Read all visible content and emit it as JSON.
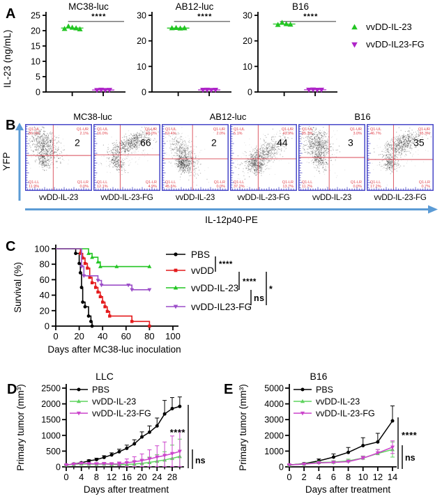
{
  "labels": {
    "A": "A",
    "B": "B",
    "C": "C",
    "D": "D",
    "E": "E"
  },
  "colors": {
    "green": "#22C522",
    "green_light": "#5FD35F",
    "magenta_marker": "#AE24C8",
    "purple_line": "#9B4DC8",
    "magenta_line": "#CC44CC",
    "red": "#E41A1C",
    "black": "#000000",
    "flow_border": "#4646C8",
    "flow_cross": "#D84854",
    "flow_label": "#E0404A",
    "arrow_blue": "#5B9BD5",
    "sig_line": "#4D4D4D"
  },
  "chart_data": [
    {
      "panel": "A",
      "type": "scatter",
      "ylabel": "IL-23 (ng/mL)",
      "legend": [
        {
          "label": "vvDD-IL-23",
          "marker": "triangle-up",
          "color": "#22C522"
        },
        {
          "label": "vvDD-IL23-FG",
          "marker": "triangle-down",
          "color": "#AE24C8"
        }
      ],
      "plots": [
        {
          "title": "MC38-luc",
          "ylim": [
            0,
            25
          ],
          "yticks": [
            0,
            5,
            10,
            15,
            20,
            25
          ],
          "sig": "****",
          "series": [
            {
              "name": "vvDD-IL-23",
              "values": [
                20.6,
                21.4,
                21.0,
                20.8,
                20.5
              ]
            },
            {
              "name": "vvDD-IL23-FG",
              "values": [
                0.6,
                0.7,
                0.6,
                0.65
              ]
            }
          ]
        },
        {
          "title": "AB12-luc",
          "ylim": [
            0,
            30
          ],
          "yticks": [
            0,
            10,
            20,
            30
          ],
          "sig": "****",
          "series": [
            {
              "name": "vvDD-IL-23",
              "values": [
                25.0,
                25.1,
                24.9,
                25.0
              ]
            },
            {
              "name": "vvDD-IL23-FG",
              "values": [
                0.8,
                0.85,
                0.75,
                0.8
              ]
            }
          ]
        },
        {
          "title": "B16",
          "ylim": [
            0,
            30
          ],
          "yticks": [
            0,
            10,
            20,
            30
          ],
          "sig": "****",
          "series": [
            {
              "name": "vvDD-IL-23",
              "values": [
                26.3,
                27.1,
                26.6,
                26.4
              ]
            },
            {
              "name": "vvDD-IL23-FG",
              "values": [
                0.85,
                0.9,
                0.8,
                0.85
              ]
            }
          ]
        }
      ]
    },
    {
      "panel": "B",
      "type": "flow-cytometry",
      "ylabel": "YFP",
      "xlabel": "IL-12p40-PE",
      "groups": [
        "MC38-luc",
        "AB12-luc",
        "B16"
      ],
      "plots": [
        {
          "group": "MC38-luc",
          "treatment": "vvDD-IL-23",
          "value": "2",
          "quadrants": [
            {
              "id": "Q1-UL",
              "pct": "86.0%"
            },
            {
              "id": "Q1-UR",
              "pct": "2.1%"
            },
            {
              "id": "Q1-LL",
              "pct": "11.9%"
            },
            {
              "id": "Q1-LR",
              "pct": "0.0%"
            }
          ],
          "cross": [
            0.42,
            0.47
          ],
          "clusters": [
            [
              0.29,
              0.3,
              0.09,
              0.145,
              -35,
              500,
              0.3
            ],
            [
              0.27,
              0.54,
              0.045,
              0.075,
              -25,
              170,
              0.28
            ],
            [
              0.31,
              0.36,
              0.16,
              0.19,
              -30,
              130,
              0.1
            ]
          ]
        },
        {
          "group": "MC38-luc",
          "treatment": "vvDD-IL-23-FG",
          "value": "66",
          "quadrants": [
            {
              "id": "Q1-UL",
              "pct": "16.0%"
            },
            {
              "id": "Q1-UR",
              "pct": "66.0%"
            },
            {
              "id": "Q1-LL",
              "pct": "12.1%"
            },
            {
              "id": "Q1-LR",
              "pct": "4.9%"
            }
          ],
          "cross": [
            0.4,
            0.46
          ],
          "clusters": [
            [
              0.55,
              0.29,
              0.17,
              0.062,
              -27,
              520,
              0.3
            ],
            [
              0.37,
              0.58,
              0.05,
              0.07,
              -30,
              180,
              0.28
            ],
            [
              0.46,
              0.44,
              0.21,
              0.12,
              -28,
              130,
              0.1
            ]
          ]
        },
        {
          "group": "AB12-luc",
          "treatment": "vvDD-IL-23",
          "value": "2",
          "quadrants": [
            {
              "id": "Q1-UL",
              "pct": "52.4%"
            },
            {
              "id": "Q1-UR",
              "pct": "2.0%"
            },
            {
              "id": "Q1-LL",
              "pct": "45.6%"
            },
            {
              "id": "Q1-LR",
              "pct": "0.0%"
            }
          ],
          "cross": [
            0.46,
            0.52
          ],
          "clusters": [
            [
              0.33,
              0.46,
              0.075,
              0.16,
              -30,
              460,
              0.26
            ],
            [
              0.31,
              0.6,
              0.05,
              0.06,
              -32,
              230,
              0.3
            ],
            [
              0.31,
              0.42,
              0.14,
              0.2,
              -26,
              140,
              0.09
            ]
          ]
        },
        {
          "group": "AB12-luc",
          "treatment": "vvDD-IL-23-FG",
          "value": "44",
          "quadrants": [
            {
              "id": "Q1-UL",
              "pct": "5.1%"
            },
            {
              "id": "Q1-UR",
              "pct": "43.9%"
            },
            {
              "id": "Q1-LL",
              "pct": "37.2%"
            },
            {
              "id": "Q1-LR",
              "pct": "13.7%"
            }
          ],
          "cross": [
            0.42,
            0.52
          ],
          "clusters": [
            [
              0.5,
              0.44,
              0.19,
              0.07,
              -35,
              520,
              0.28
            ],
            [
              0.38,
              0.62,
              0.06,
              0.062,
              -35,
              210,
              0.3
            ],
            [
              0.5,
              0.45,
              0.24,
              0.12,
              -35,
              150,
              0.09
            ]
          ]
        },
        {
          "group": "B16",
          "treatment": "vvDD-IL-23",
          "value": "3",
          "quadrants": [
            {
              "id": "Q1-UL",
              "pct": "85.3%"
            },
            {
              "id": "Q1-UR",
              "pct": "3.0%"
            },
            {
              "id": "Q1-LL",
              "pct": "11.7%"
            },
            {
              "id": "Q1-LR",
              "pct": "0.0%"
            }
          ],
          "cross": [
            0.46,
            0.5
          ],
          "clusters": [
            [
              0.3,
              0.31,
              0.095,
              0.135,
              -28,
              500,
              0.3
            ],
            [
              0.31,
              0.53,
              0.05,
              0.08,
              -25,
              180,
              0.26
            ],
            [
              0.33,
              0.36,
              0.15,
              0.18,
              -25,
              130,
              0.1
            ]
          ]
        },
        {
          "group": "B16",
          "treatment": "vvDD-IL-23-FG",
          "value": "35",
          "quadrants": [
            {
              "id": "Q1-UL",
              "pct": "46.7%"
            },
            {
              "id": "Q1-UR",
              "pct": "35.3%"
            },
            {
              "id": "Q1-LL",
              "pct": "17.2%"
            },
            {
              "id": "Q1-LR",
              "pct": "0.7%"
            }
          ],
          "cross": [
            0.4,
            0.53
          ],
          "clusters": [
            [
              0.53,
              0.3,
              0.155,
              0.07,
              -25,
              490,
              0.3
            ],
            [
              0.37,
              0.59,
              0.06,
              0.062,
              -25,
              200,
              0.28
            ],
            [
              0.47,
              0.42,
              0.2,
              0.12,
              -25,
              140,
              0.1
            ]
          ]
        }
      ]
    },
    {
      "panel": "C",
      "type": "line",
      "subtype": "kaplan-meier",
      "xlabel": "Days after MC38-luc inoculation",
      "ylabel": "Survival (%)",
      "xlim": [
        0,
        100
      ],
      "xticks": [
        0,
        20,
        40,
        60,
        80,
        100
      ],
      "ylim": [
        0,
        100
      ],
      "yticks": [
        0,
        20,
        40,
        60,
        80,
        100
      ],
      "series": [
        {
          "name": "PBS",
          "color": "#000000",
          "marker": "circle",
          "x": [
            0,
            17,
            20,
            21,
            22,
            23,
            25,
            28,
            30,
            31
          ],
          "y": [
            100,
            94,
            81,
            69,
            50,
            31,
            25,
            13,
            6,
            0
          ]
        },
        {
          "name": "vvDD",
          "color": "#E41A1C",
          "marker": "square",
          "x": [
            0,
            21,
            23,
            25,
            27,
            29,
            31,
            34,
            36,
            38,
            40,
            42,
            44,
            46,
            65,
            80
          ],
          "y": [
            100,
            94,
            88,
            81,
            75,
            63,
            56,
            50,
            44,
            38,
            31,
            25,
            19,
            13,
            6,
            0
          ]
        },
        {
          "name": "vvDD-IL-23",
          "color": "#22C522",
          "marker": "triangle-up",
          "x": [
            0,
            28,
            31,
            36,
            38,
            52,
            80
          ],
          "y": [
            100,
            94,
            89,
            83,
            77,
            77,
            77
          ]
        },
        {
          "name": "vvDD-IL23-FG",
          "color": "#9B4DC8",
          "marker": "triangle-down",
          "x": [
            0,
            22,
            24,
            36,
            39,
            62,
            65,
            80
          ],
          "y": [
            100,
            77,
            65,
            59,
            53,
            53,
            47,
            47
          ]
        }
      ],
      "comparisons": [
        {
          "label": "****",
          "between": [
            "PBS",
            "vvDD"
          ]
        },
        {
          "label": "****",
          "between": [
            "vvDD",
            "vvDD-IL-23"
          ]
        },
        {
          "label": "ns",
          "between": [
            "vvDD-IL-23",
            "vvDD-IL23-FG"
          ]
        },
        {
          "label": "*",
          "between": [
            "vvDD",
            "vvDD-IL23-FG"
          ]
        }
      ]
    },
    {
      "panel": "D",
      "type": "line",
      "title": "LLC",
      "xlabel": "Days after treatment",
      "ylabel": "Primary tumor (mm³)",
      "xlim": [
        0,
        30
      ],
      "xticks": [
        0,
        4,
        8,
        12,
        16,
        20,
        24,
        28
      ],
      "ylim": [
        0,
        2500
      ],
      "yticks": [
        0,
        500,
        1000,
        1500,
        2000,
        2500
      ],
      "x": [
        0,
        2,
        4,
        6,
        8,
        10,
        12,
        14,
        16,
        18,
        20,
        22,
        24,
        26,
        28,
        30
      ],
      "series": [
        {
          "name": "PBS",
          "color": "#000000",
          "marker": "circle",
          "values": [
            60,
            90,
            130,
            190,
            230,
            300,
            380,
            480,
            590,
            730,
            950,
            1100,
            1300,
            1680,
            1850,
            1920
          ],
          "err": [
            15,
            20,
            25,
            35,
            45,
            55,
            65,
            80,
            100,
            130,
            160,
            200,
            250,
            430,
            350,
            300
          ]
        },
        {
          "name": "vvDD-IL-23",
          "color": "#5FD35F",
          "marker": "triangle-up",
          "values": [
            60,
            80,
            95,
            90,
            85,
            90,
            80,
            70,
            75,
            90,
            110,
            140,
            180,
            220,
            270,
            330
          ],
          "err": [
            10,
            15,
            20,
            25,
            25,
            30,
            30,
            35,
            60,
            90,
            130,
            170,
            210,
            260,
            420,
            550
          ]
        },
        {
          "name": "vvDD-IL-23-FG",
          "color": "#CC44CC",
          "marker": "triangle-down",
          "values": [
            60,
            85,
            110,
            100,
            95,
            100,
            90,
            95,
            130,
            160,
            200,
            250,
            310,
            360,
            420,
            490
          ],
          "err": [
            10,
            15,
            25,
            30,
            35,
            40,
            45,
            60,
            120,
            160,
            210,
            290,
            360,
            430,
            560,
            660
          ]
        }
      ],
      "comparisons": [
        {
          "label": "****"
        },
        {
          "label": "ns"
        }
      ]
    },
    {
      "panel": "E",
      "type": "line",
      "title": "B16",
      "xlabel": "Days after treatment",
      "ylabel": "Primary tumor (mm³)",
      "xlim": [
        0,
        14
      ],
      "xticks": [
        0,
        2,
        4,
        6,
        8,
        10,
        12,
        14
      ],
      "ylim": [
        0,
        5000
      ],
      "yticks": [
        0,
        1000,
        2000,
        3000,
        4000,
        5000
      ],
      "x": [
        0,
        2,
        4,
        6,
        8,
        10,
        12,
        14
      ],
      "series": [
        {
          "name": "PBS",
          "color": "#000000",
          "marker": "circle",
          "values": [
            120,
            200,
            380,
            620,
            920,
            1350,
            1580,
            2920
          ],
          "err": [
            40,
            60,
            120,
            200,
            310,
            500,
            550,
            950
          ]
        },
        {
          "name": "vvDD-IL-23",
          "color": "#5FD35F",
          "marker": "triangle-up",
          "values": [
            120,
            180,
            280,
            300,
            380,
            560,
            850,
            1100
          ],
          "err": [
            20,
            40,
            80,
            90,
            110,
            130,
            250,
            480
          ]
        },
        {
          "name": "vvDD-IL-23-FG",
          "color": "#CC44CC",
          "marker": "triangle-down",
          "values": [
            120,
            170,
            250,
            280,
            330,
            550,
            880,
            1250
          ],
          "err": [
            20,
            30,
            60,
            80,
            100,
            120,
            220,
            400
          ]
        }
      ],
      "comparisons": [
        {
          "label": "****"
        },
        {
          "label": "ns"
        }
      ]
    }
  ]
}
